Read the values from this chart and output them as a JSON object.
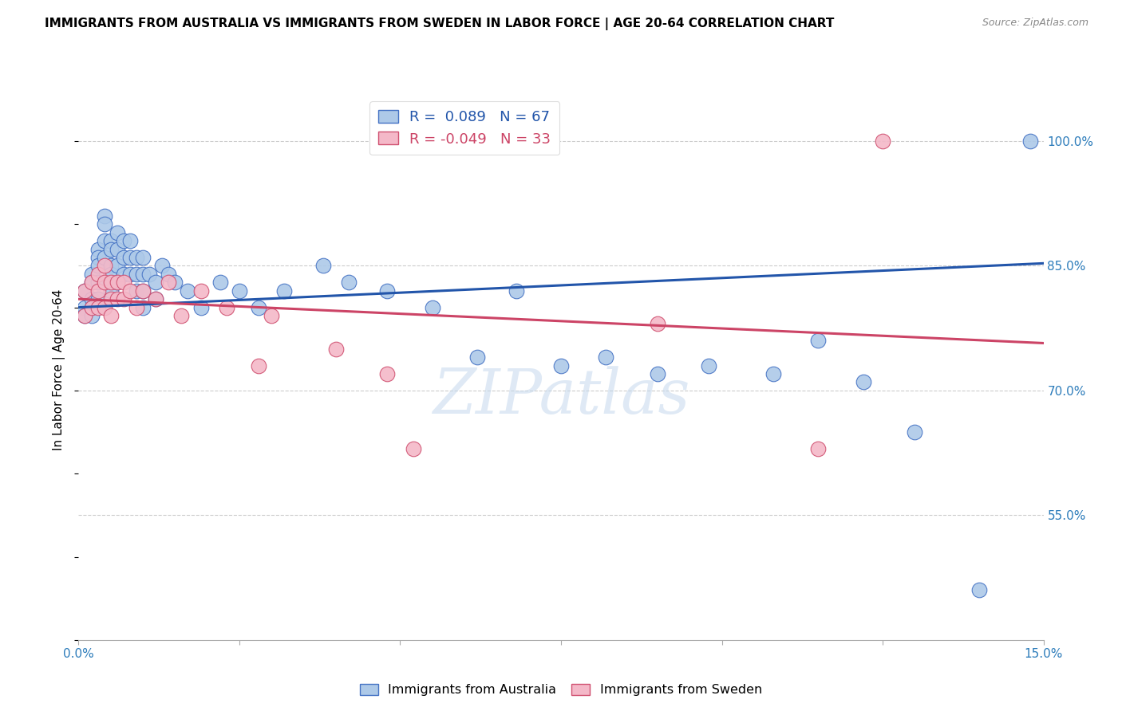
{
  "title": "IMMIGRANTS FROM AUSTRALIA VS IMMIGRANTS FROM SWEDEN IN LABOR FORCE | AGE 20-64 CORRELATION CHART",
  "source": "Source: ZipAtlas.com",
  "ylabel_label": "In Labor Force | Age 20-64",
  "xlim": [
    0.0,
    0.15
  ],
  "ylim": [
    0.4,
    1.05
  ],
  "xtick_positions": [
    0.0,
    0.025,
    0.05,
    0.075,
    0.1,
    0.125,
    0.15
  ],
  "xticklabels_show": [
    "0.0%",
    "",
    "",
    "",
    "",
    "",
    "15.0%"
  ],
  "ytick_positions": [
    0.55,
    0.7,
    0.85,
    1.0
  ],
  "yticklabels": [
    "55.0%",
    "70.0%",
    "85.0%",
    "100.0%"
  ],
  "australia_R": 0.089,
  "australia_N": 67,
  "sweden_R": -0.049,
  "sweden_N": 33,
  "australia_color": "#adc9e8",
  "australia_edge_color": "#4472c4",
  "sweden_color": "#f4b8c8",
  "sweden_edge_color": "#d05070",
  "australia_line_color": "#2255aa",
  "sweden_line_color": "#cc4466",
  "watermark": "ZIPatlas",
  "aus_line_x0": 0.0,
  "aus_line_x1": 0.15,
  "aus_line_y0": 0.8,
  "aus_line_y1": 0.853,
  "swe_line_x0": 0.0,
  "swe_line_x1": 0.15,
  "swe_line_y0": 0.81,
  "swe_line_y1": 0.757,
  "australia_x": [
    0.001,
    0.001,
    0.001,
    0.002,
    0.002,
    0.002,
    0.002,
    0.002,
    0.003,
    0.003,
    0.003,
    0.003,
    0.003,
    0.004,
    0.004,
    0.004,
    0.004,
    0.005,
    0.005,
    0.005,
    0.005,
    0.005,
    0.006,
    0.006,
    0.006,
    0.006,
    0.007,
    0.007,
    0.007,
    0.008,
    0.008,
    0.008,
    0.009,
    0.009,
    0.009,
    0.01,
    0.01,
    0.01,
    0.01,
    0.011,
    0.012,
    0.012,
    0.013,
    0.014,
    0.015,
    0.017,
    0.019,
    0.022,
    0.025,
    0.028,
    0.032,
    0.038,
    0.042,
    0.048,
    0.055,
    0.062,
    0.068,
    0.075,
    0.082,
    0.09,
    0.098,
    0.108,
    0.115,
    0.122,
    0.13,
    0.14,
    0.148
  ],
  "australia_y": [
    0.82,
    0.8,
    0.79,
    0.84,
    0.83,
    0.81,
    0.8,
    0.79,
    0.87,
    0.86,
    0.85,
    0.83,
    0.81,
    0.91,
    0.9,
    0.88,
    0.86,
    0.88,
    0.87,
    0.85,
    0.84,
    0.82,
    0.89,
    0.87,
    0.85,
    0.83,
    0.88,
    0.86,
    0.84,
    0.88,
    0.86,
    0.84,
    0.86,
    0.84,
    0.82,
    0.86,
    0.84,
    0.82,
    0.8,
    0.84,
    0.83,
    0.81,
    0.85,
    0.84,
    0.83,
    0.82,
    0.8,
    0.83,
    0.82,
    0.8,
    0.82,
    0.85,
    0.83,
    0.82,
    0.8,
    0.74,
    0.82,
    0.73,
    0.74,
    0.72,
    0.73,
    0.72,
    0.76,
    0.71,
    0.65,
    0.46,
    1.0
  ],
  "sweden_x": [
    0.001,
    0.001,
    0.002,
    0.002,
    0.003,
    0.003,
    0.003,
    0.004,
    0.004,
    0.004,
    0.005,
    0.005,
    0.005,
    0.006,
    0.006,
    0.007,
    0.007,
    0.008,
    0.009,
    0.01,
    0.012,
    0.014,
    0.016,
    0.019,
    0.023,
    0.028,
    0.03,
    0.04,
    0.048,
    0.052,
    0.09,
    0.115,
    0.125
  ],
  "sweden_y": [
    0.82,
    0.79,
    0.83,
    0.8,
    0.84,
    0.82,
    0.8,
    0.85,
    0.83,
    0.8,
    0.83,
    0.81,
    0.79,
    0.83,
    0.81,
    0.83,
    0.81,
    0.82,
    0.8,
    0.82,
    0.81,
    0.83,
    0.79,
    0.82,
    0.8,
    0.73,
    0.79,
    0.75,
    0.72,
    0.63,
    0.78,
    0.63,
    1.0
  ]
}
